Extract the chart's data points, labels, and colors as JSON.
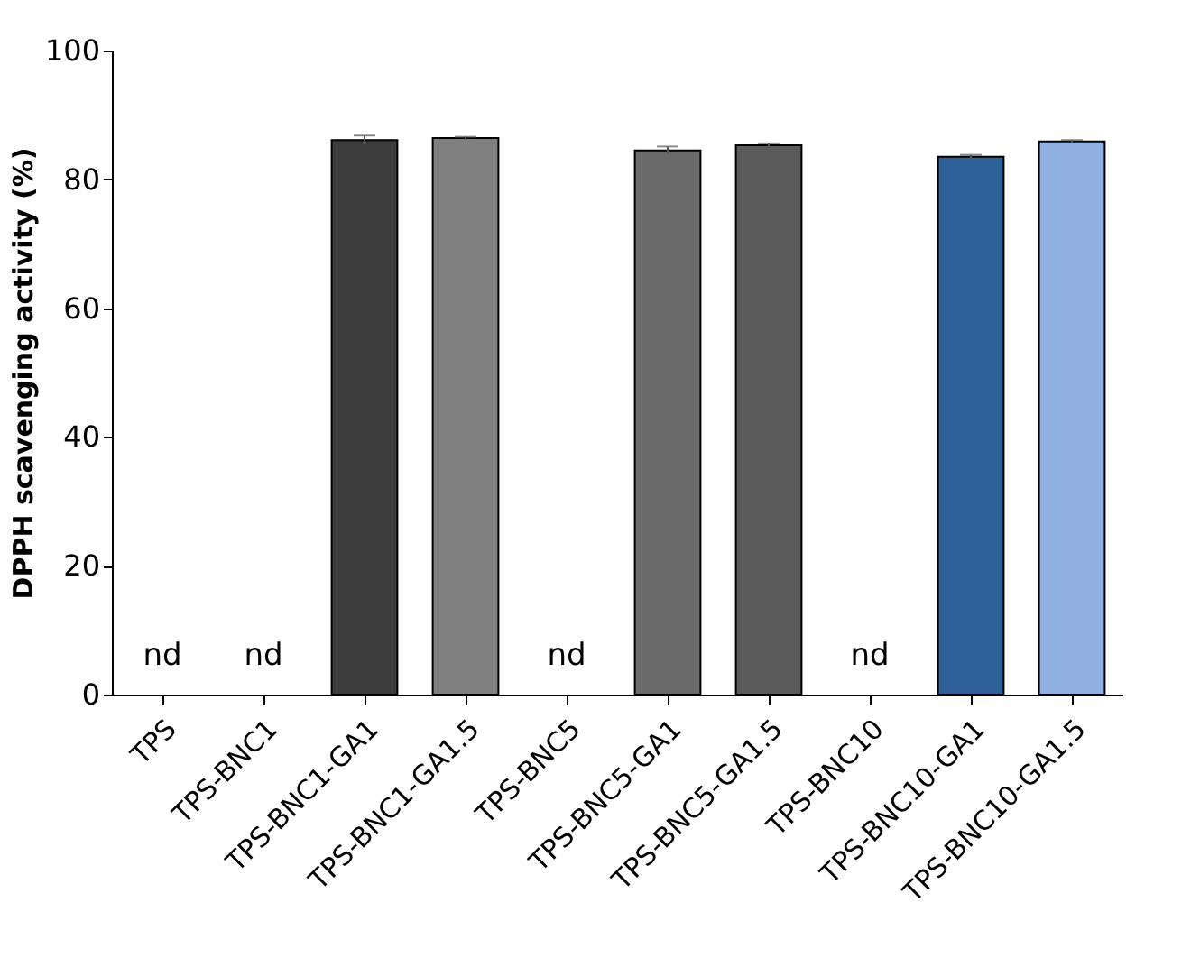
{
  "chart_data": {
    "type": "bar",
    "categories": [
      "TPS",
      "TPS-BNC1",
      "TPS-BNC1-GA1",
      "TPS-BNC1-GA1.5",
      "TPS-BNC5",
      "TPS-BNC5-GA1",
      "TPS-BNC5-GA1.5",
      "TPS-BNC10",
      "TPS-BNC10-GA1",
      "TPS-BNC10-GA1.5"
    ],
    "values": [
      null,
      null,
      86.1,
      86.4,
      null,
      84.5,
      85.3,
      null,
      83.5,
      85.9
    ],
    "errors": [
      null,
      null,
      0.7,
      0.2,
      null,
      0.6,
      0.3,
      null,
      0.3,
      0.2
    ],
    "colors": [
      "#3c3c3c",
      "#3c3c3c",
      "#3c3c3c",
      "#808080",
      "#707070",
      "#6a6a6a",
      "#5a5a5a",
      "#2f5f97",
      "#2f5f97",
      "#8fb0e0"
    ],
    "ylabel": "DPPH scavenging activity (%)",
    "ylim": [
      0,
      100
    ],
    "yticks": [
      0,
      20,
      40,
      60,
      80,
      100
    ],
    "grid": false,
    "annotations": [
      "nd",
      "nd",
      "nd",
      "nd"
    ]
  }
}
